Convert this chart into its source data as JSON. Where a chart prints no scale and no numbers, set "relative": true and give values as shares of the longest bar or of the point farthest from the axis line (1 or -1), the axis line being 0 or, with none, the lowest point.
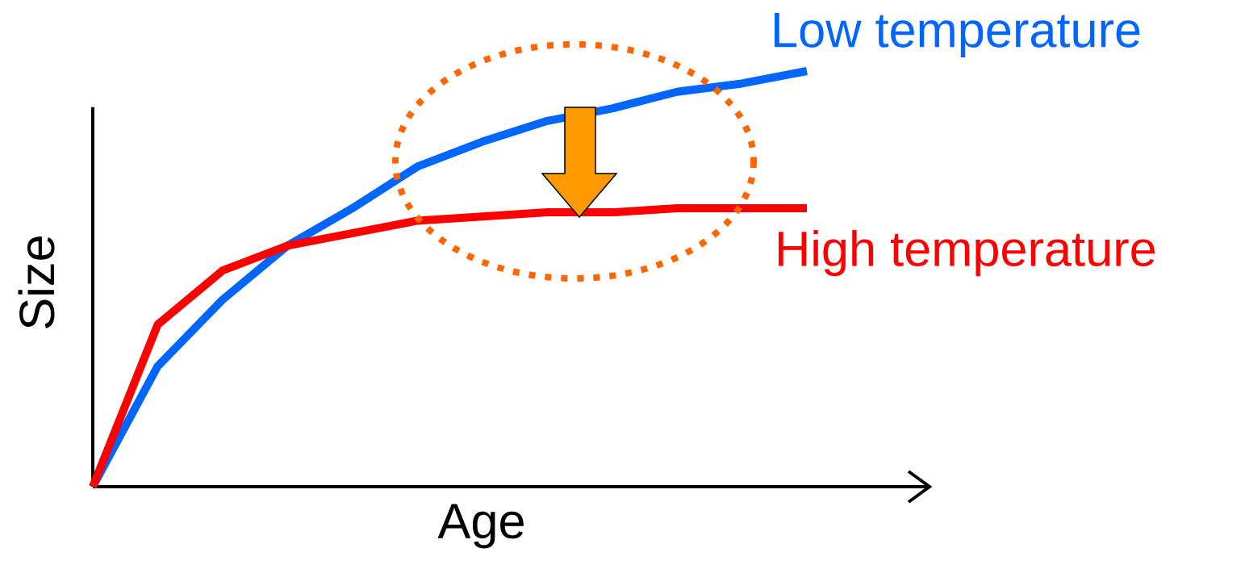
{
  "chart_data": {
    "type": "line",
    "relative": true,
    "xlabel": "Age",
    "ylabel": "Size",
    "categories": [
      null,
      null,
      null,
      null,
      null,
      null,
      null,
      null,
      null,
      null,
      null,
      null
    ],
    "series": [
      {
        "name": "Low temperature",
        "color": "#0066ff",
        "values": [
          0,
          0.29,
          0.45,
          0.58,
          0.67,
          0.77,
          0.83,
          0.88,
          0.91,
          0.95,
          0.97,
          1
        ]
      },
      {
        "name": "High temperature",
        "color": "#ff0000",
        "values": [
          0,
          0.39,
          0.52,
          0.58,
          0.61,
          0.64,
          0.65,
          0.66,
          0.66,
          0.67,
          0.67,
          0.67
        ]
      }
    ]
  }
}
